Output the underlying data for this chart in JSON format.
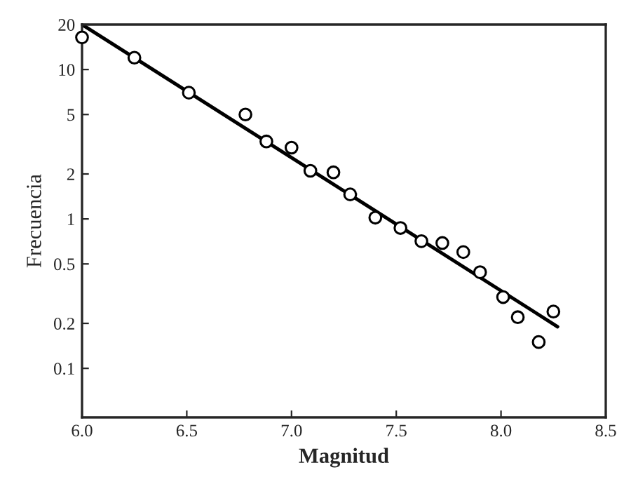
{
  "chart_data": {
    "type": "scatter",
    "xlabel": "Magnitud",
    "ylabel": "Frecuencia",
    "log": "y",
    "xlim": [
      6.0,
      8.5
    ],
    "ylim": [
      0.047,
      20
    ],
    "xticks": [
      {
        "value": 6.0,
        "label": "6.0"
      },
      6.5,
      {
        "value": 7.0,
        "label": "7.0"
      },
      7.5,
      {
        "value": 8.0,
        "label": "8.0"
      },
      8.5
    ],
    "yticks": [
      0.1,
      0.2,
      0.5,
      1,
      2,
      5,
      10,
      20
    ],
    "grid": false,
    "legend": false,
    "series": [
      {
        "marker": "circle",
        "color": "#000000",
        "x": [
          6.0,
          6.25,
          6.51,
          6.78,
          6.88,
          7.0,
          7.09,
          7.2,
          7.28,
          7.4,
          7.52,
          7.62,
          7.72,
          7.82,
          7.9,
          8.01,
          8.08,
          8.18,
          8.25
        ],
        "values": [
          16.4,
          12,
          7,
          5,
          3.3,
          3.0,
          2.1,
          2.05,
          1.46,
          1.02,
          0.87,
          0.71,
          0.69,
          0.6,
          0.44,
          0.3,
          0.22,
          0.15,
          0.24
        ]
      },
      {
        "type": "line",
        "marker": "none",
        "color": "#000000",
        "line_style": "solid",
        "x": [
          6.0,
          8.27
        ],
        "values": [
          20,
          0.19
        ]
      }
    ]
  }
}
